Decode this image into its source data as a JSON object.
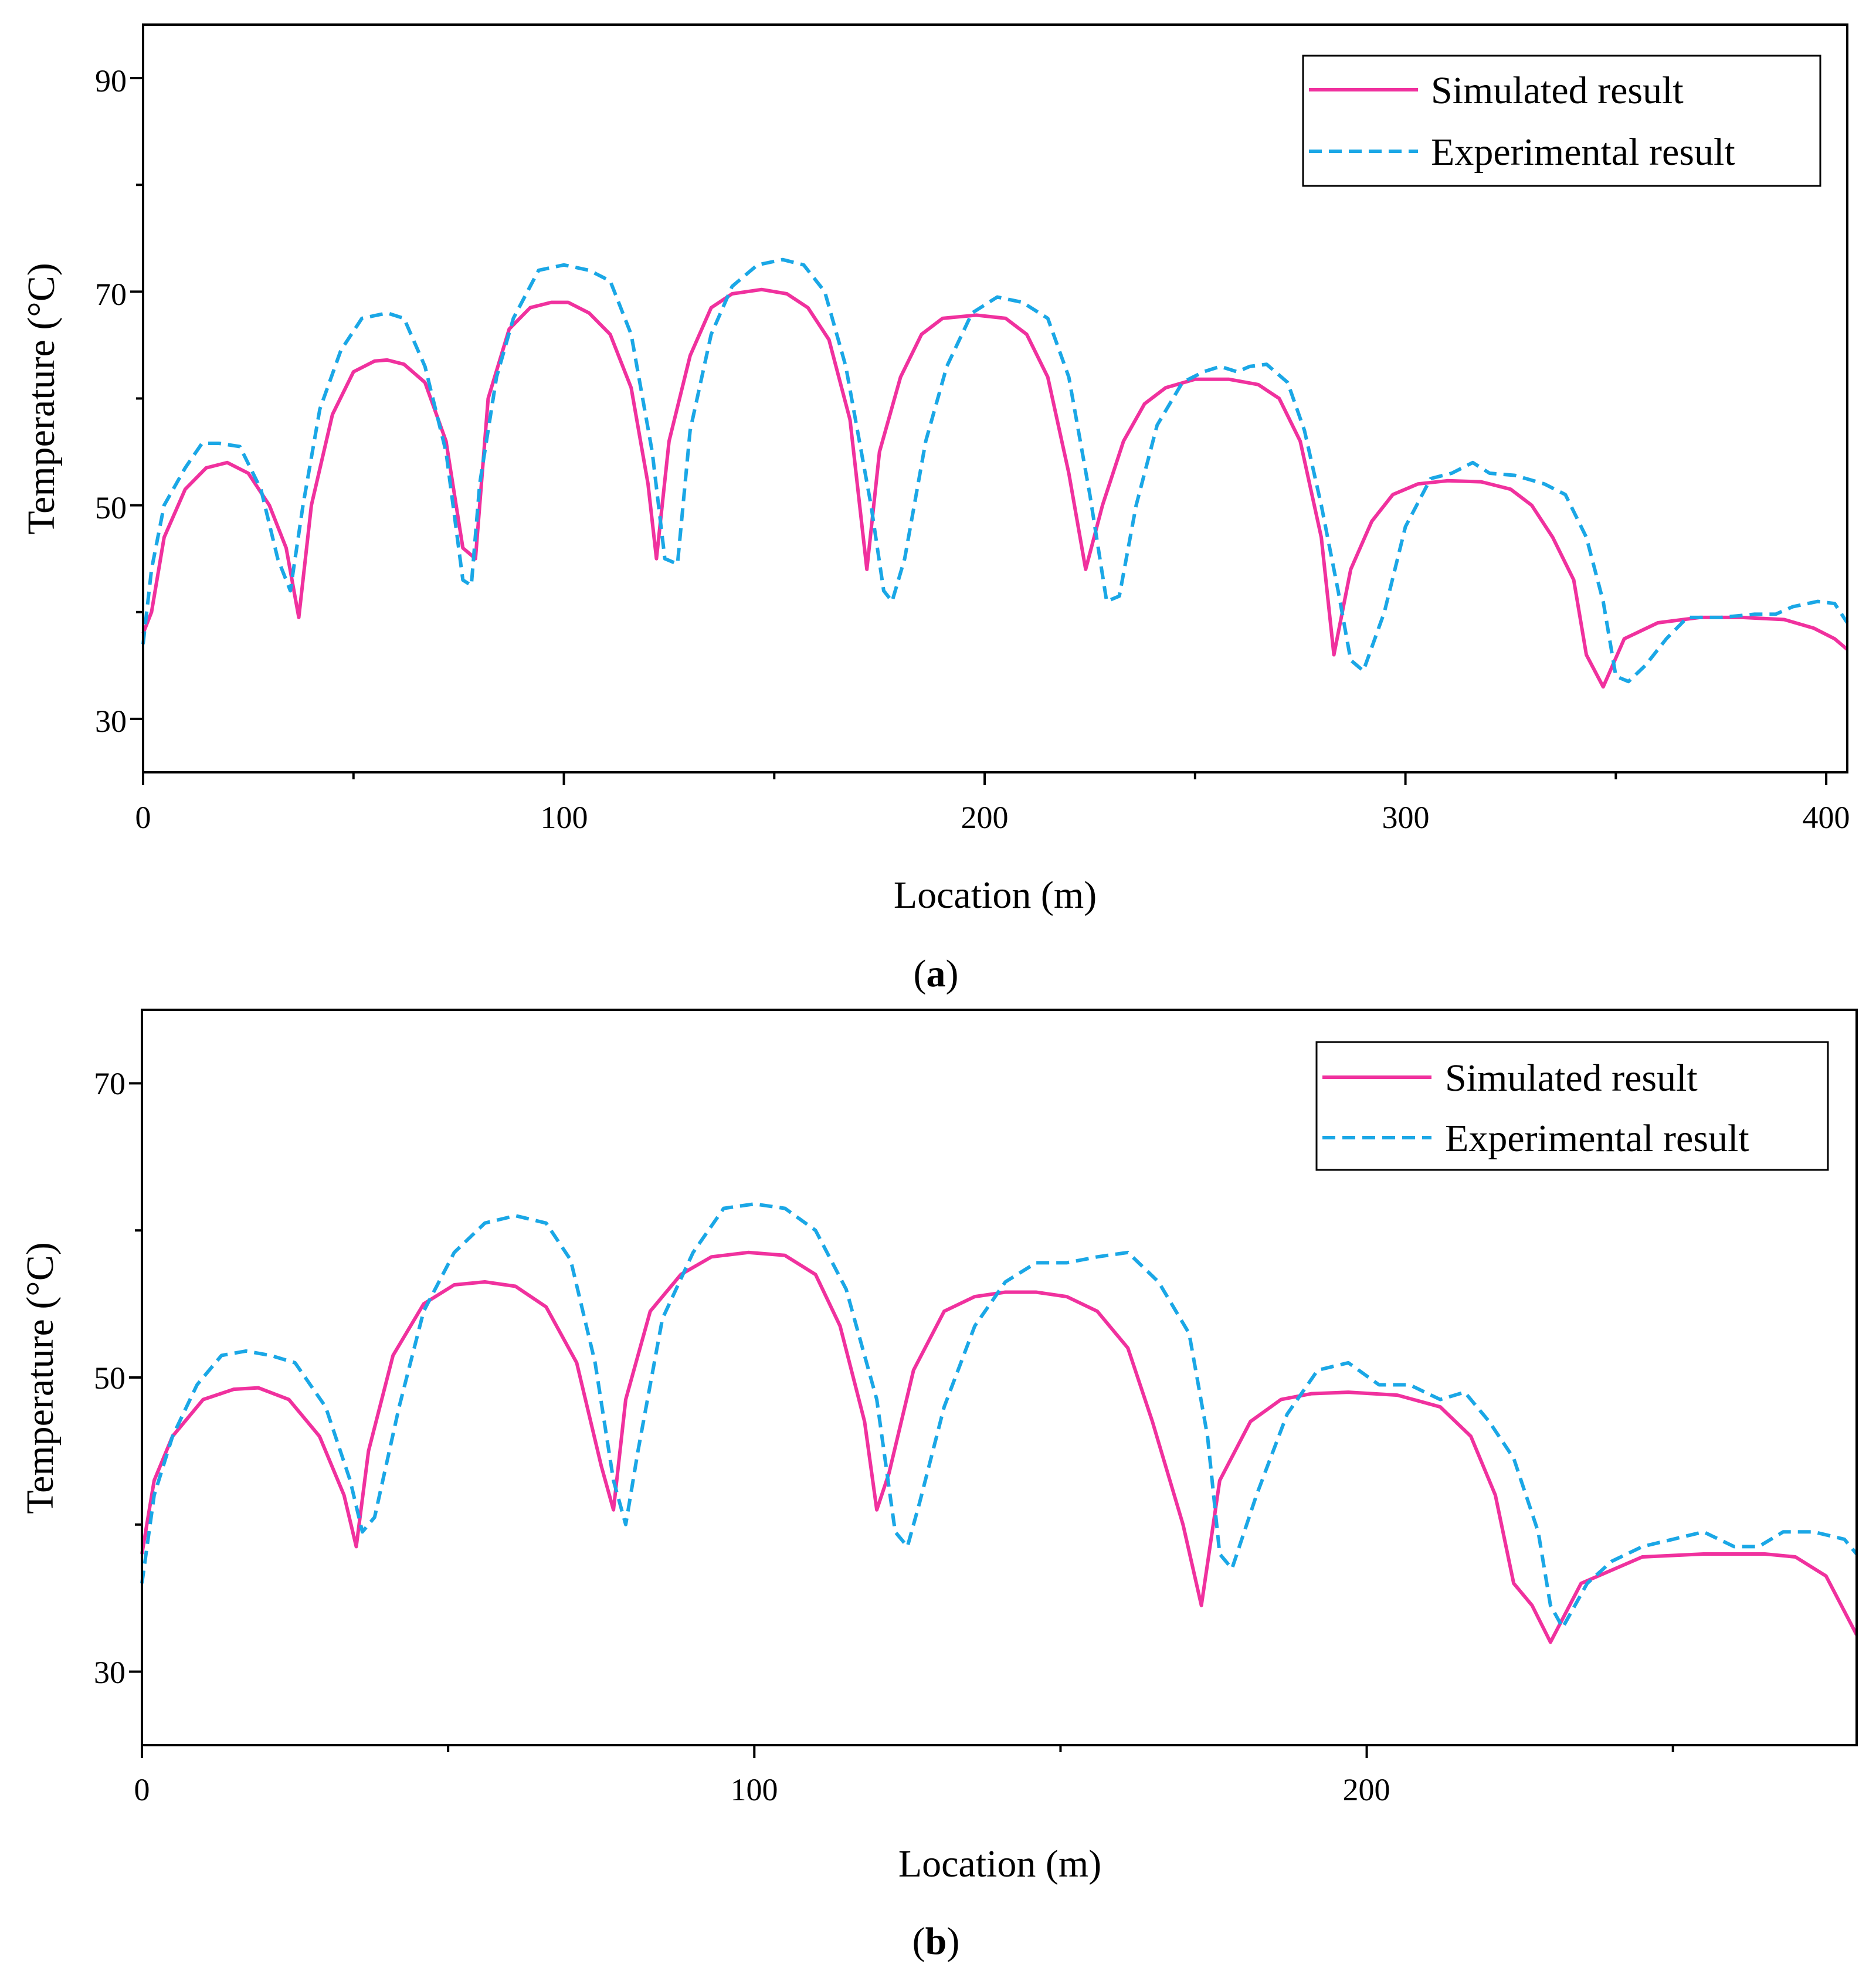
{
  "colors": {
    "simulated": "#f0319e",
    "experimental": "#1aa7e6",
    "axis": "#000000",
    "background": "#ffffff"
  },
  "chart_data": [
    {
      "type": "line",
      "panel": "a",
      "caption": {
        "open": "(",
        "letter": "a",
        "close": ")"
      },
      "xlabel": "Location (m)",
      "ylabel": "Temperature (°C)",
      "xlim": [
        0,
        405
      ],
      "ylim": [
        25,
        95
      ],
      "xticks": [
        0,
        100,
        200,
        300,
        400
      ],
      "xticks_minor": [
        50,
        150,
        250,
        350
      ],
      "yticks": [
        30,
        50,
        70,
        90
      ],
      "yticks_minor": [
        40,
        60,
        80
      ],
      "legend": {
        "placement": "top-right",
        "entries": [
          "Simulated result",
          "Experimental result"
        ]
      },
      "series": [
        {
          "name": "Simulated result",
          "style": "solid",
          "x": [
            0,
            2,
            5,
            10,
            15,
            20,
            25,
            30,
            34,
            37,
            40,
            45,
            50,
            55,
            58,
            62,
            67,
            72,
            76,
            79,
            82,
            87,
            92,
            97,
            101,
            106,
            111,
            116,
            120,
            122,
            125,
            130,
            135,
            140,
            147,
            153,
            158,
            163,
            168,
            172,
            175,
            180,
            185,
            190,
            198,
            205,
            210,
            215,
            220,
            224,
            228,
            233,
            238,
            243,
            250,
            258,
            265,
            270,
            275,
            280,
            283,
            287,
            292,
            297,
            303,
            310,
            318,
            325,
            330,
            335,
            340,
            343,
            347,
            352,
            360,
            370,
            380,
            390,
            397,
            402,
            405
          ],
          "values": [
            38,
            40,
            47,
            51.5,
            53.5,
            54,
            53,
            50,
            46,
            39.5,
            50,
            58.5,
            62.5,
            63.5,
            63.6,
            63.2,
            61.5,
            56,
            46,
            45,
            60,
            66.5,
            68.5,
            69,
            69,
            68,
            66,
            61,
            52,
            45,
            56,
            64,
            68.5,
            69.8,
            70.2,
            69.8,
            68.5,
            65.5,
            58,
            44,
            55,
            62,
            66,
            67.5,
            67.8,
            67.5,
            66,
            62,
            53,
            44,
            50,
            56,
            59.5,
            61,
            61.8,
            61.8,
            61.3,
            60,
            56,
            47,
            36,
            44,
            48.5,
            51,
            52,
            52.3,
            52.2,
            51.5,
            50,
            47,
            43,
            36,
            33,
            37.5,
            39,
            39.5,
            39.5,
            39.3,
            38.5,
            37.5,
            36.5
          ]
        },
        {
          "name": "Experimental result",
          "style": "dashed",
          "x": [
            0,
            2,
            5,
            10,
            14,
            18,
            23,
            28,
            32,
            35,
            38,
            42,
            47,
            52,
            58,
            62,
            67,
            72,
            76,
            78,
            80,
            84,
            88,
            94,
            100,
            106,
            111,
            116,
            121,
            124,
            127,
            130,
            135,
            140,
            146,
            152,
            157,
            162,
            167,
            173,
            176,
            178,
            181,
            186,
            191,
            197,
            203,
            209,
            215,
            220,
            225,
            229,
            232,
            236,
            241,
            247,
            252,
            256,
            260,
            263,
            267,
            272,
            276,
            280,
            284,
            287,
            290,
            295,
            300,
            306,
            311,
            316,
            320,
            326,
            333,
            338,
            343,
            347,
            350,
            353,
            357,
            362,
            367,
            375,
            383,
            388,
            392,
            398,
            402,
            405
          ],
          "values": [
            37,
            44,
            50,
            53.5,
            55.8,
            55.8,
            55.5,
            51.5,
            45,
            42,
            50,
            59,
            64.5,
            67.5,
            68,
            67.5,
            63,
            55,
            43,
            42.5,
            52,
            62,
            67.5,
            72,
            72.5,
            72,
            71,
            66,
            55,
            45,
            44.5,
            57,
            66,
            70.5,
            72.5,
            73,
            72.5,
            70,
            63,
            50,
            42,
            41,
            45,
            56,
            63,
            68,
            69.5,
            69,
            67.5,
            62,
            51,
            41,
            41.5,
            50,
            57.5,
            61.5,
            62.5,
            63,
            62.5,
            63,
            63.2,
            61.5,
            57,
            50,
            42,
            35.5,
            34.5,
            40,
            48,
            52.5,
            53,
            54,
            53,
            52.8,
            52,
            51,
            47,
            41,
            34,
            33.5,
            35,
            37.5,
            39.5,
            39.5,
            39.8,
            39.8,
            40.5,
            41,
            40.8,
            39
          ]
        }
      ]
    },
    {
      "type": "line",
      "panel": "b",
      "caption": {
        "open": "(",
        "letter": "b",
        "close": ")"
      },
      "xlabel": "Location (m)",
      "ylabel": "Temperature (°C)",
      "xlim": [
        0,
        280
      ],
      "ylim": [
        25,
        75
      ],
      "xticks": [
        0,
        100,
        200
      ],
      "xticks_minor": [
        50,
        150,
        250
      ],
      "yticks": [
        30,
        50,
        70
      ],
      "yticks_minor": [
        40,
        60
      ],
      "legend": {
        "placement": "top-right",
        "entries": [
          "Simulated result",
          "Experimental result"
        ]
      },
      "series": [
        {
          "name": "Simulated result",
          "style": "solid",
          "x": [
            0,
            2,
            5,
            10,
            15,
            19,
            24,
            29,
            33,
            35,
            37,
            41,
            46,
            51,
            56,
            61,
            66,
            71,
            75,
            77,
            79,
            83,
            88,
            93,
            99,
            105,
            110,
            114,
            118,
            120,
            122,
            126,
            131,
            136,
            141,
            146,
            151,
            156,
            161,
            165,
            170,
            173,
            176,
            181,
            186,
            191,
            197,
            205,
            212,
            217,
            221,
            224,
            227,
            230,
            235,
            245,
            255,
            265,
            270,
            275,
            280
          ],
          "values": [
            38,
            43,
            46,
            48.5,
            49.2,
            49.3,
            48.5,
            46,
            42,
            38.5,
            45,
            51.5,
            55,
            56.3,
            56.5,
            56.2,
            54.8,
            51,
            44,
            41,
            48.5,
            54.5,
            57,
            58.2,
            58.5,
            58.3,
            57,
            53.5,
            47,
            41,
            43.5,
            50.5,
            54.5,
            55.5,
            55.8,
            55.8,
            55.5,
            54.5,
            52,
            47,
            40,
            34.5,
            43,
            47,
            48.5,
            48.9,
            49,
            48.8,
            48,
            46,
            42,
            36,
            34.5,
            32,
            36,
            37.8,
            38,
            38,
            37.8,
            36.5,
            32.5
          ]
        },
        {
          "name": "Experimental result",
          "style": "dashed",
          "x": [
            0,
            2,
            5,
            9,
            13,
            17,
            21,
            25,
            30,
            34,
            36,
            38,
            42,
            46,
            51,
            56,
            61,
            66,
            70,
            74,
            77,
            79,
            81,
            85,
            90,
            95,
            100,
            105,
            110,
            115,
            120,
            123,
            125,
            127,
            131,
            136,
            141,
            146,
            151,
            156,
            161,
            166,
            171,
            174,
            176,
            178,
            182,
            187,
            192,
            197,
            202,
            207,
            212,
            216,
            220,
            224,
            228,
            230,
            232,
            236,
            240,
            245,
            250,
            255,
            260,
            264,
            268,
            273,
            278,
            280
          ],
          "values": [
            36,
            42,
            46,
            49.5,
            51.5,
            51.8,
            51.5,
            51,
            48,
            43,
            39.5,
            40.5,
            48,
            54.5,
            58.5,
            60.5,
            61,
            60.5,
            58,
            51,
            43,
            40,
            45,
            54,
            58.5,
            61.5,
            61.8,
            61.5,
            60,
            56,
            48.5,
            39.5,
            38.5,
            41.5,
            48,
            53.5,
            56.5,
            57.8,
            57.8,
            58.2,
            58.5,
            56.5,
            53,
            46,
            38,
            37,
            42,
            47.5,
            50.5,
            51,
            49.5,
            49.5,
            48.5,
            49,
            47,
            44.5,
            39.5,
            34.5,
            33,
            36,
            37.5,
            38.5,
            39,
            39.5,
            38.5,
            38.5,
            39.5,
            39.5,
            39,
            38
          ]
        }
      ]
    }
  ]
}
